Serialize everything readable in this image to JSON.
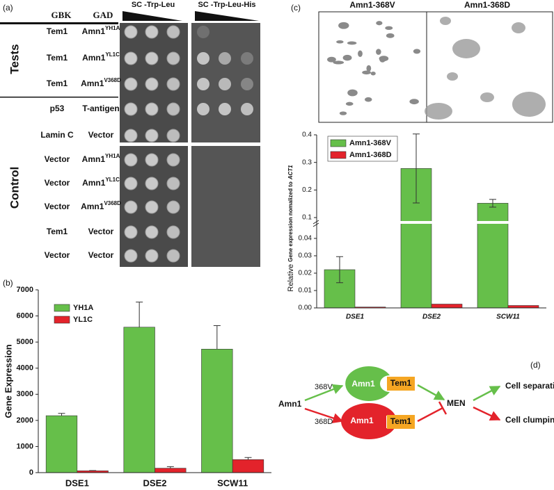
{
  "panels": {
    "a": "(a)",
    "b": "(b)",
    "c": "(c)",
    "d": "(d)"
  },
  "spot_assay": {
    "headers": {
      "gbk": "GBK",
      "gad": "GAD",
      "medium1": "SC -Trp-Leu",
      "medium2": "SC -Trp-Leu-His"
    },
    "groups": {
      "tests": "Tests",
      "control": "Control"
    },
    "rows": [
      {
        "gbk": "Tem1",
        "gad": "Amn1",
        "sup": "YH1A"
      },
      {
        "gbk": "Tem1",
        "gad": "Amn1",
        "sup": "YL1C"
      },
      {
        "gbk": "Tem1",
        "gad": "Amn1",
        "sup": "V368D"
      },
      {
        "gbk": "p53",
        "gad": "T-antigen"
      },
      {
        "gbk": "Lamin C",
        "gad": "Vector"
      },
      {
        "gbk": "Vector",
        "gad": "Amn1",
        "sup": "YH1A"
      },
      {
        "gbk": "Vector",
        "gad": "Amn1",
        "sup": "YL1C"
      },
      {
        "gbk": "Vector",
        "gad": "Amn1",
        "sup": "V368D"
      },
      {
        "gbk": "Tem1",
        "gad": "Vector"
      },
      {
        "gbk": "Vector",
        "gad": "Vector"
      }
    ]
  },
  "micrographs": {
    "left": "Amn1-368V",
    "right": "Amn1-368D"
  },
  "chart_data": [
    {
      "type": "bar",
      "categories": [
        "DSE1",
        "DSE2",
        "SCW11"
      ],
      "ylabel": "Gene Expression",
      "ylim": [
        0,
        7000
      ],
      "yticks": [
        0,
        1000,
        2000,
        3000,
        4000,
        5000,
        6000,
        7000
      ],
      "legend": "upper left",
      "errorbars": "upper",
      "series": [
        {
          "name": "YH1A",
          "color": "#66bf4a",
          "values": [
            2180,
            5570,
            4730
          ],
          "errors": [
            90,
            960,
            900
          ]
        },
        {
          "name": "YL1C",
          "color": "#e3232b",
          "values": [
            70,
            170,
            500
          ],
          "errors": [
            10,
            60,
            80
          ]
        }
      ]
    },
    {
      "type": "bar",
      "categories": [
        "DSE1",
        "DSE2",
        "SCW11"
      ],
      "ylabel": [
        "Relative",
        "Gene expression nomalized to",
        "ACT1"
      ],
      "ylim": [
        0,
        0.4
      ],
      "ybreak": [
        0.048,
        0.09
      ],
      "yticks": [
        {
          "value": 0,
          "label": "0.00"
        },
        0.01,
        0.02,
        0.03,
        0.04,
        0.1,
        0.2,
        0.3,
        0.4
      ],
      "legend": "upper left",
      "errorbars": "both",
      "series": [
        {
          "name": "Amn1-368V",
          "color": "#66bf4a",
          "values": [
            0.022,
            0.278,
            0.152
          ],
          "errors": [
            0.0075,
            0.125,
            0.014
          ]
        },
        {
          "name": "Amn1-368D",
          "color": "#e3232b",
          "values": [
            0.0005,
            0.0022,
            0.0014
          ]
        }
      ]
    }
  ],
  "diagram": {
    "input": "Amn1",
    "branch_top": "368V",
    "branch_bottom": "368D",
    "top_complex": {
      "amn1": "Amn1",
      "tem1": "Tem1"
    },
    "bottom_complex": {
      "amn1": "Amn1",
      "tem1": "Tem1"
    },
    "hub": "MEN",
    "outcome_top": "Cell separation",
    "outcome_bottom": "Cell clumping"
  }
}
